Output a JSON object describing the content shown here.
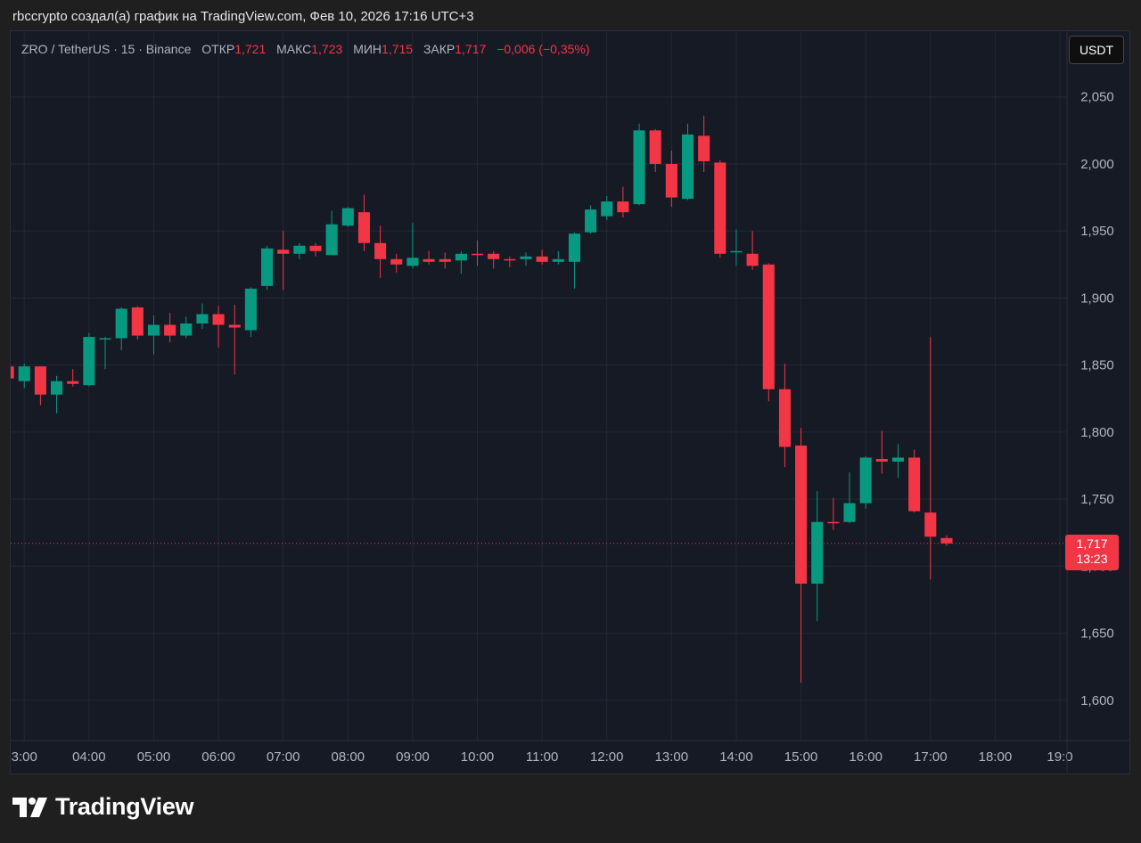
{
  "caption": "rbccrypto создал(а) график на TradingView.com, Фев 10, 2026 17:16 UTC+3",
  "legend": {
    "symbol": "ZRO / TetherUS · 15 · Binance",
    "open_label": "ОТКР",
    "open_value": "1,721",
    "high_label": "МАКС",
    "high_value": "1,723",
    "low_label": "МИН",
    "low_value": "1,715",
    "close_label": "ЗАКР",
    "close_value": "1,717",
    "change": "−0,006 (−0,35%)"
  },
  "currency_button": "USDT",
  "last_price": {
    "price": "1,717",
    "countdown": "13:23"
  },
  "brand": {
    "name": "TradingView",
    "icon": "tradingview-logo-icon"
  },
  "colors": {
    "up": "#089981",
    "down": "#f23645",
    "background": "#161a25",
    "grid": "#242836",
    "axis_text": "#b2b5be"
  },
  "chart_data": {
    "type": "candlestick",
    "interval_minutes": 15,
    "y_ticks": [
      "2,050",
      "2,000",
      "1,950",
      "1,900",
      "1,850",
      "1,800",
      "1,750",
      "1,700",
      "1,650",
      "1,600"
    ],
    "y_tick_values": [
      2.05,
      2.0,
      1.95,
      1.9,
      1.85,
      1.8,
      1.75,
      1.7,
      1.65,
      1.6
    ],
    "y_range": [
      1.57,
      2.099
    ],
    "x_ticks": [
      "3:00",
      "04:00",
      "05:00",
      "06:00",
      "07:00",
      "08:00",
      "09:00",
      "10:00",
      "11:00",
      "12:00",
      "13:00",
      "14:00",
      "15:00",
      "16:00",
      "17:00",
      "18:00",
      "19:0"
    ],
    "x_tick_hours": [
      3,
      4,
      5,
      6,
      7,
      8,
      9,
      10,
      11,
      12,
      13,
      14,
      15,
      16,
      17,
      18,
      19
    ],
    "x_range_hours": [
      2.79,
      19.11
    ],
    "last_price_value": 1.717,
    "candles": [
      {
        "t": 2.75,
        "o": 1.849,
        "h": 1.851,
        "l": 1.839,
        "c": 1.84
      },
      {
        "t": 3.0,
        "o": 1.838,
        "h": 1.851,
        "l": 1.833,
        "c": 1.849
      },
      {
        "t": 3.25,
        "o": 1.849,
        "h": 1.849,
        "l": 1.82,
        "c": 1.828
      },
      {
        "t": 3.5,
        "o": 1.828,
        "h": 1.842,
        "l": 1.814,
        "c": 1.838
      },
      {
        "t": 3.75,
        "o": 1.838,
        "h": 1.847,
        "l": 1.834,
        "c": 1.836
      },
      {
        "t": 4.0,
        "o": 1.835,
        "h": 1.874,
        "l": 1.834,
        "c": 1.871
      },
      {
        "t": 4.25,
        "o": 1.87,
        "h": 1.871,
        "l": 1.847,
        "c": 1.87
      },
      {
        "t": 4.5,
        "o": 1.87,
        "h": 1.893,
        "l": 1.861,
        "c": 1.892
      },
      {
        "t": 4.75,
        "o": 1.893,
        "h": 1.894,
        "l": 1.869,
        "c": 1.872
      },
      {
        "t": 5.0,
        "o": 1.872,
        "h": 1.887,
        "l": 1.858,
        "c": 1.88
      },
      {
        "t": 5.25,
        "o": 1.88,
        "h": 1.889,
        "l": 1.867,
        "c": 1.872
      },
      {
        "t": 5.5,
        "o": 1.872,
        "h": 1.886,
        "l": 1.87,
        "c": 1.881
      },
      {
        "t": 5.75,
        "o": 1.881,
        "h": 1.896,
        "l": 1.877,
        "c": 1.888
      },
      {
        "t": 6.0,
        "o": 1.888,
        "h": 1.894,
        "l": 1.863,
        "c": 1.88
      },
      {
        "t": 6.25,
        "o": 1.88,
        "h": 1.895,
        "l": 1.843,
        "c": 1.878
      },
      {
        "t": 6.5,
        "o": 1.876,
        "h": 1.908,
        "l": 1.871,
        "c": 1.907
      },
      {
        "t": 6.75,
        "o": 1.909,
        "h": 1.939,
        "l": 1.906,
        "c": 1.937
      },
      {
        "t": 7.0,
        "o": 1.936,
        "h": 1.95,
        "l": 1.906,
        "c": 1.933
      },
      {
        "t": 7.25,
        "o": 1.933,
        "h": 1.941,
        "l": 1.929,
        "c": 1.939
      },
      {
        "t": 7.5,
        "o": 1.939,
        "h": 1.941,
        "l": 1.931,
        "c": 1.935
      },
      {
        "t": 7.75,
        "o": 1.932,
        "h": 1.965,
        "l": 1.932,
        "c": 1.955
      },
      {
        "t": 8.0,
        "o": 1.954,
        "h": 1.968,
        "l": 1.953,
        "c": 1.967
      },
      {
        "t": 8.25,
        "o": 1.964,
        "h": 1.977,
        "l": 1.935,
        "c": 1.941
      },
      {
        "t": 8.5,
        "o": 1.941,
        "h": 1.954,
        "l": 1.915,
        "c": 1.929
      },
      {
        "t": 8.75,
        "o": 1.929,
        "h": 1.933,
        "l": 1.919,
        "c": 1.925
      },
      {
        "t": 9.0,
        "o": 1.924,
        "h": 1.956,
        "l": 1.922,
        "c": 1.93
      },
      {
        "t": 9.25,
        "o": 1.929,
        "h": 1.935,
        "l": 1.925,
        "c": 1.927
      },
      {
        "t": 9.5,
        "o": 1.929,
        "h": 1.934,
        "l": 1.922,
        "c": 1.927
      },
      {
        "t": 9.75,
        "o": 1.928,
        "h": 1.935,
        "l": 1.918,
        "c": 1.933
      },
      {
        "t": 10.0,
        "o": 1.933,
        "h": 1.943,
        "l": 1.924,
        "c": 1.932
      },
      {
        "t": 10.25,
        "o": 1.933,
        "h": 1.935,
        "l": 1.922,
        "c": 1.929
      },
      {
        "t": 10.5,
        "o": 1.929,
        "h": 1.931,
        "l": 1.923,
        "c": 1.928
      },
      {
        "t": 10.75,
        "o": 1.929,
        "h": 1.934,
        "l": 1.924,
        "c": 1.931
      },
      {
        "t": 11.0,
        "o": 1.931,
        "h": 1.936,
        "l": 1.925,
        "c": 1.927
      },
      {
        "t": 11.25,
        "o": 1.927,
        "h": 1.935,
        "l": 1.925,
        "c": 1.929
      },
      {
        "t": 11.5,
        "o": 1.927,
        "h": 1.949,
        "l": 1.907,
        "c": 1.948
      },
      {
        "t": 11.75,
        "o": 1.949,
        "h": 1.969,
        "l": 1.948,
        "c": 1.966
      },
      {
        "t": 12.0,
        "o": 1.961,
        "h": 1.976,
        "l": 1.958,
        "c": 1.972
      },
      {
        "t": 12.25,
        "o": 1.972,
        "h": 1.983,
        "l": 1.96,
        "c": 1.964
      },
      {
        "t": 12.5,
        "o": 1.97,
        "h": 2.03,
        "l": 1.969,
        "c": 2.025
      },
      {
        "t": 12.75,
        "o": 2.025,
        "h": 2.026,
        "l": 1.994,
        "c": 2.0
      },
      {
        "t": 13.0,
        "o": 2.0,
        "h": 2.01,
        "l": 1.968,
        "c": 1.975
      },
      {
        "t": 13.25,
        "o": 1.974,
        "h": 2.03,
        "l": 1.973,
        "c": 2.022
      },
      {
        "t": 13.5,
        "o": 2.021,
        "h": 2.036,
        "l": 1.994,
        "c": 2.002
      },
      {
        "t": 13.75,
        "o": 2.001,
        "h": 2.003,
        "l": 1.93,
        "c": 1.933
      },
      {
        "t": 14.0,
        "o": 1.934,
        "h": 1.951,
        "l": 1.924,
        "c": 1.935
      },
      {
        "t": 14.25,
        "o": 1.933,
        "h": 1.95,
        "l": 1.921,
        "c": 1.924
      },
      {
        "t": 14.5,
        "o": 1.925,
        "h": 1.926,
        "l": 1.823,
        "c": 1.832
      },
      {
        "t": 14.75,
        "o": 1.832,
        "h": 1.851,
        "l": 1.774,
        "c": 1.789
      },
      {
        "t": 15.0,
        "o": 1.79,
        "h": 1.803,
        "l": 1.613,
        "c": 1.687
      },
      {
        "t": 15.25,
        "o": 1.687,
        "h": 1.756,
        "l": 1.659,
        "c": 1.733
      },
      {
        "t": 15.5,
        "o": 1.733,
        "h": 1.751,
        "l": 1.727,
        "c": 1.732
      },
      {
        "t": 15.75,
        "o": 1.733,
        "h": 1.77,
        "l": 1.732,
        "c": 1.747
      },
      {
        "t": 16.0,
        "o": 1.747,
        "h": 1.782,
        "l": 1.743,
        "c": 1.781
      },
      {
        "t": 16.25,
        "o": 1.78,
        "h": 1.801,
        "l": 1.769,
        "c": 1.778
      },
      {
        "t": 16.5,
        "o": 1.778,
        "h": 1.791,
        "l": 1.766,
        "c": 1.781
      },
      {
        "t": 16.75,
        "o": 1.781,
        "h": 1.787,
        "l": 1.74,
        "c": 1.741
      },
      {
        "t": 17.0,
        "o": 1.74,
        "h": 1.871,
        "l": 1.69,
        "c": 1.722
      },
      {
        "t": 17.25,
        "o": 1.721,
        "h": 1.723,
        "l": 1.715,
        "c": 1.717
      }
    ]
  }
}
